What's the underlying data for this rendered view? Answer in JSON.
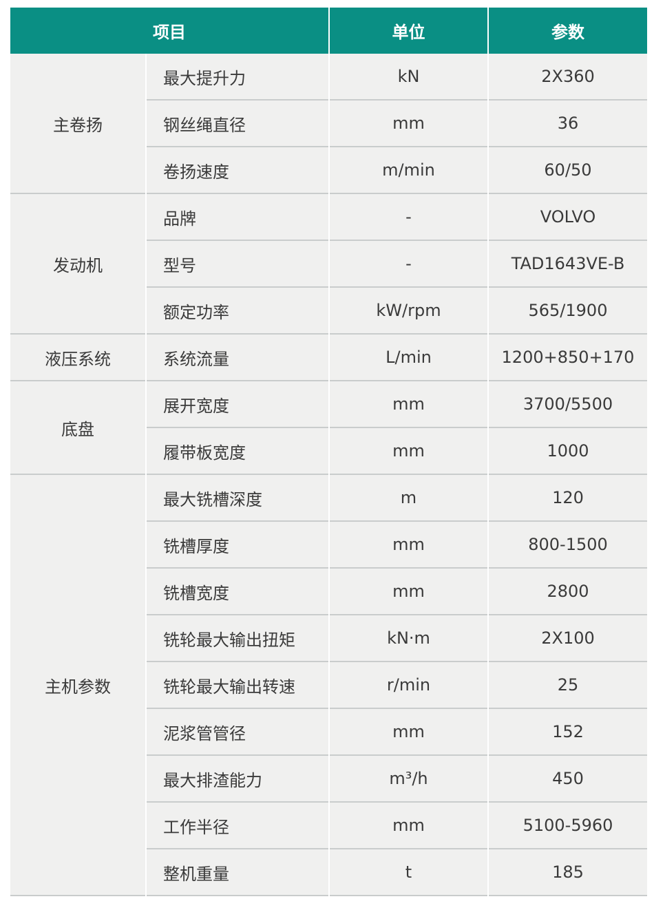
{
  "header": {
    "item": "项目",
    "unit": "单位",
    "value": "参数"
  },
  "colors": {
    "header_bg": "#0a8f84",
    "cell_bg": "#f0f0ef",
    "divider": "#c9cccc"
  },
  "groups": [
    {
      "name": "主卷扬",
      "rows": [
        {
          "item": "最大提升力",
          "unit": "kN",
          "value": "2X360"
        },
        {
          "item": "钢丝绳直径",
          "unit": "mm",
          "value": "36"
        },
        {
          "item": "卷扬速度",
          "unit": "m/min",
          "value": "60/50"
        }
      ]
    },
    {
      "name": "发动机",
      "rows": [
        {
          "item": "品牌",
          "unit": "-",
          "value": "VOLVO"
        },
        {
          "item": "型号",
          "unit": "-",
          "value": "TAD1643VE-B"
        },
        {
          "item": "额定功率",
          "unit": "kW/rpm",
          "value": "565/1900"
        }
      ]
    },
    {
      "name": "液压系统",
      "rows": [
        {
          "item": "系统流量",
          "unit": "L/min",
          "value": "1200+850+170"
        }
      ]
    },
    {
      "name": "底盘",
      "rows": [
        {
          "item": "展开宽度",
          "unit": "mm",
          "value": "3700/5500"
        },
        {
          "item": "履带板宽度",
          "unit": "mm",
          "value": "1000"
        }
      ]
    },
    {
      "name": "主机参数",
      "rows": [
        {
          "item": "最大铣槽深度",
          "unit": "m",
          "value": "120"
        },
        {
          "item": "铣槽厚度",
          "unit": "mm",
          "value": "800-1500"
        },
        {
          "item": "铣槽宽度",
          "unit": "mm",
          "value": "2800"
        },
        {
          "item": "铣轮最大输出扭矩",
          "unit": "kN·m",
          "value": "2X100"
        },
        {
          "item": "铣轮最大输出转速",
          "unit": "r/min",
          "value": "25"
        },
        {
          "item": "泥浆管管径",
          "unit": "mm",
          "value": "152"
        },
        {
          "item": "最大排渣能力",
          "unit": "m³/h",
          "value": "450"
        },
        {
          "item": "工作半径",
          "unit": "mm",
          "value": "5100-5960"
        },
        {
          "item": "整机重量",
          "unit": "t",
          "value": "185"
        }
      ]
    }
  ]
}
